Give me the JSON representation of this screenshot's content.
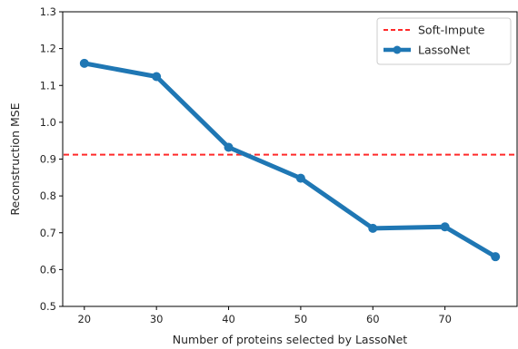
{
  "chart_data": {
    "type": "line",
    "title": "",
    "xlabel": "Number of proteins selected by LassoNet",
    "ylabel": "Reconstruction MSE",
    "xlim": [
      17,
      80
    ],
    "ylim": [
      0.5,
      1.3
    ],
    "xticks": [
      20,
      30,
      40,
      50,
      60,
      70
    ],
    "yticks": [
      0.5,
      0.6,
      0.7,
      0.8,
      0.9,
      1.0,
      1.1,
      1.2,
      1.3
    ],
    "xtick_labels": [
      "20",
      "30",
      "40",
      "50",
      "60",
      "70"
    ],
    "ytick_labels": [
      "0.5",
      "0.6",
      "0.7",
      "0.8",
      "0.9",
      "1.0",
      "1.1",
      "1.2",
      "1.3"
    ],
    "grid": false,
    "legend_position": "top-right",
    "series": [
      {
        "name": "LassoNet",
        "color": "#1f77b4",
        "style": "solid-with-markers",
        "x": [
          20,
          30,
          40,
          50,
          60,
          70,
          77
        ],
        "y": [
          1.16,
          1.124,
          0.932,
          0.848,
          0.712,
          0.716,
          0.635
        ]
      }
    ],
    "reference_lines": [
      {
        "name": "Soft-Impute",
        "color": "#ff2a2a",
        "style": "dashed",
        "orientation": "horizontal",
        "y": 0.912
      }
    ]
  }
}
